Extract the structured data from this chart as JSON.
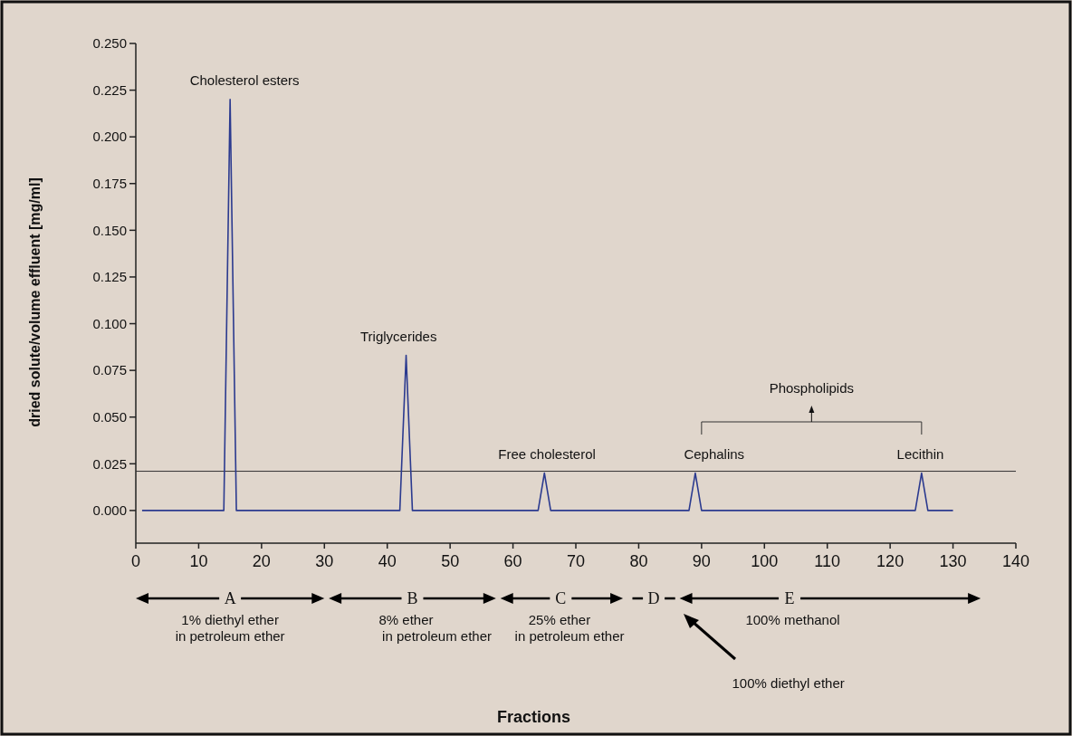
{
  "chart_data": {
    "type": "line",
    "ylabel": "dried solute/volume effluent [mg/ml]",
    "x": [
      1,
      14,
      15,
      16,
      42,
      43,
      44,
      64,
      65,
      66,
      88,
      89,
      90,
      124,
      125,
      126,
      130
    ],
    "series": [
      {
        "color": "#2b3a8f",
        "values": [
          0,
          0,
          0.22,
          0,
          0,
          0.083,
          0,
          0,
          0.02,
          0,
          0,
          0.02,
          0,
          0,
          0.02,
          0,
          0
        ]
      }
    ],
    "xlim": [
      0,
      140
    ],
    "xticks": [
      0,
      10,
      20,
      30,
      40,
      50,
      60,
      70,
      80,
      90,
      100,
      110,
      120,
      130,
      140
    ],
    "ylim": [
      -0.0175,
      0.25
    ],
    "yticks": [
      {
        "value": 0,
        "label": "0.000"
      },
      {
        "value": 0.025,
        "label": "0.025"
      },
      {
        "value": 0.05,
        "label": "0.050"
      },
      {
        "value": 0.075,
        "label": "0.075"
      },
      {
        "value": 0.1,
        "label": "0.100"
      },
      {
        "value": 0.125,
        "label": "0.125"
      },
      {
        "value": 0.15,
        "label": "0.150"
      },
      {
        "value": 0.175,
        "label": "0.175"
      },
      {
        "value": 0.2,
        "label": "0.200"
      },
      {
        "value": 0.225,
        "label": "0.225"
      },
      {
        "value": 0.25,
        "label": "0.250"
      }
    ],
    "ref_lines": [
      {
        "axis": "y",
        "value": 0.021,
        "color": "#333333"
      }
    ],
    "marker": "none",
    "grid": false,
    "annotations": [
      {
        "text": "Cholesterol esters",
        "x": 15,
        "y": 0.22
      },
      {
        "text": "Triglycerides",
        "x": 43,
        "y": 0.083
      },
      {
        "text": "Free cholesterol",
        "x": 65,
        "y": 0.02
      },
      {
        "text": "Cephalins",
        "x": 89,
        "y": 0.02
      },
      {
        "text": "Lecithin",
        "x": 125,
        "y": 0.02
      },
      "Phospholipids",
      "A",
      "1% diethyl ether",
      "in petroleum ether",
      "B",
      "8% ether",
      "in petroleum ether",
      "C",
      "25% ether",
      "in petroleum ether",
      "D",
      "E",
      "100% methanol",
      "100% diethyl ether",
      "Fractions"
    ]
  }
}
